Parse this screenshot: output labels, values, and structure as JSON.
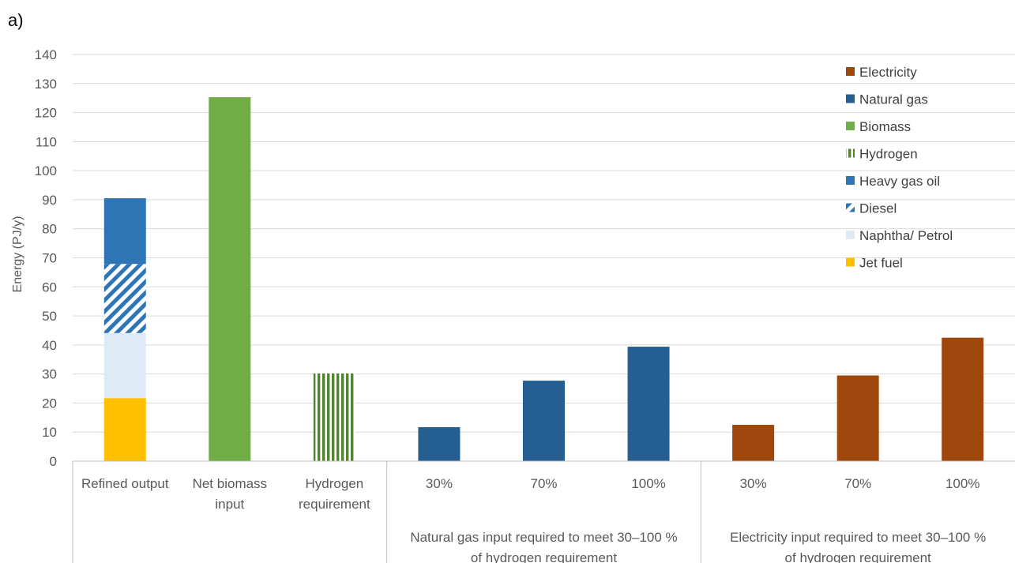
{
  "chart_data": {
    "type": "bar",
    "panel_label": "a)",
    "ylabel": "Energy (PJ/y)",
    "ylim": [
      0,
      140
    ],
    "yticks": [
      0,
      10,
      20,
      30,
      40,
      50,
      60,
      70,
      80,
      90,
      100,
      110,
      120,
      130,
      140
    ],
    "grid": true,
    "legend_position": "top-right",
    "categories": [
      [
        "Refined output"
      ],
      [
        "Net biomass",
        "input"
      ],
      [
        "Hydrogen",
        "requirement"
      ],
      [
        "30%"
      ],
      [
        "70%"
      ],
      [
        "100%"
      ],
      [
        "30%"
      ],
      [
        "70%"
      ],
      [
        "100%"
      ]
    ],
    "groups": [
      {
        "label": [
          "Natural gas input required to meet 30–100 %",
          "of hydrogen requirement"
        ],
        "categories": [
          3,
          4,
          5
        ]
      },
      {
        "label": [
          "Electricity input required to meet 30–100 %",
          "of hydrogen requirement"
        ],
        "categories": [
          6,
          7,
          8
        ]
      }
    ],
    "series": [
      {
        "name": "Electricity",
        "color": "#9E480E",
        "pattern": "solid",
        "values": [
          0,
          0,
          0,
          0,
          0,
          0,
          12.5,
          29.5,
          42.5
        ]
      },
      {
        "name": "Natural gas",
        "color": "#255E91",
        "pattern": "solid",
        "values": [
          0,
          0,
          0,
          11.7,
          27.7,
          39.4,
          0,
          0,
          0
        ]
      },
      {
        "name": "Biomass",
        "color": "#70AD47",
        "pattern": "solid",
        "values": [
          0,
          125.3,
          0,
          0,
          0,
          0,
          0,
          0,
          0
        ]
      },
      {
        "name": "Hydrogen",
        "color": "#548235",
        "pattern": "vertical",
        "values": [
          0,
          0,
          30.2,
          0,
          0,
          0,
          0,
          0,
          0
        ]
      },
      {
        "name": "Heavy gas oil",
        "color": "#2E75B6",
        "pattern": "solid",
        "values": [
          22.6,
          0,
          0,
          0,
          0,
          0,
          0,
          0,
          0
        ]
      },
      {
        "name": "Diesel",
        "color": "#2E75B6",
        "pattern": "diagonal",
        "values": [
          23.8,
          0,
          0,
          0,
          0,
          0,
          0,
          0,
          0
        ]
      },
      {
        "name": "Naphtha/ Petrol",
        "color": "#DEEBF7",
        "pattern": "solid",
        "values": [
          22.4,
          0,
          0,
          0,
          0,
          0,
          0,
          0,
          0
        ]
      },
      {
        "name": "Jet fuel",
        "color": "#FFC000",
        "pattern": "solid",
        "values": [
          21.7,
          0,
          0,
          0,
          0,
          0,
          0,
          0,
          0
        ]
      }
    ],
    "stack_order_bottom_to_top": [
      "Jet fuel",
      "Naphtha/ Petrol",
      "Diesel",
      "Heavy gas oil",
      "Hydrogen",
      "Biomass",
      "Natural gas",
      "Electricity"
    ]
  }
}
